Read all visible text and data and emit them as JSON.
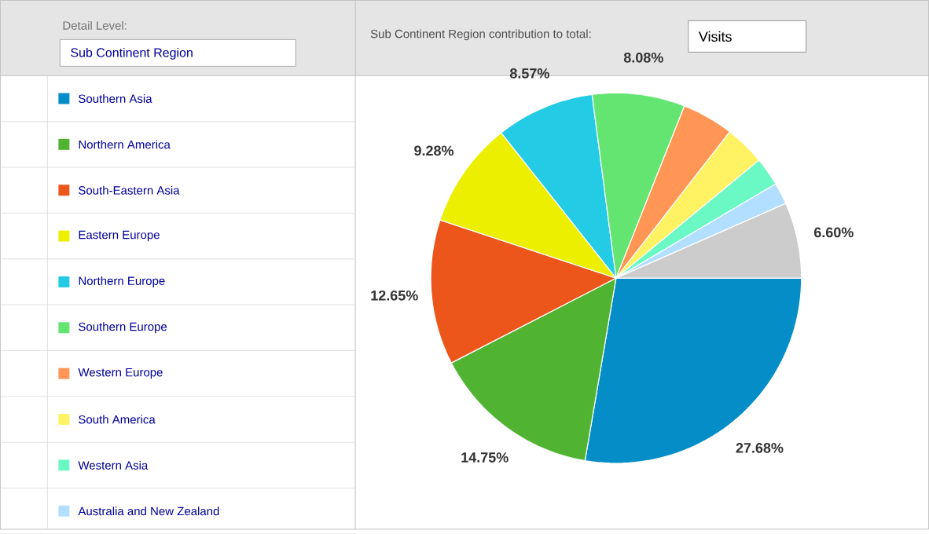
{
  "chart_data": {
    "type": "pie",
    "title": "Sub Continent Region contribution to total:",
    "annotations": [
      "Detail Level:",
      "Sub Continent Region",
      "Visits"
    ],
    "categories": [
      "Southern Asia",
      "Northern America",
      "South-Eastern Asia",
      "Eastern Europe",
      "Northern Europe",
      "Southern Europe",
      "Western Europe",
      "South America",
      "Western Asia",
      "Australia and New Zealand",
      null
    ],
    "values": [
      27.68,
      14.75,
      12.65,
      9.28,
      8.57,
      8.08,
      4.5,
      3.5,
      2.5,
      1.89,
      6.6
    ],
    "value_labels": [
      "27.68%",
      "14.75%",
      "12.65%",
      "9.28%",
      "8.57%",
      "8.08%",
      null,
      null,
      null,
      null,
      "6.60%"
    ],
    "colors": [
      "#058dc7",
      "#50b432",
      "#ed561b",
      "#edef00",
      "#24cbe5",
      "#64e572",
      "#ff9655",
      "#fff263",
      "#6af9c4",
      "#b2deff",
      "#cccccc"
    ],
    "legend": "left"
  }
}
